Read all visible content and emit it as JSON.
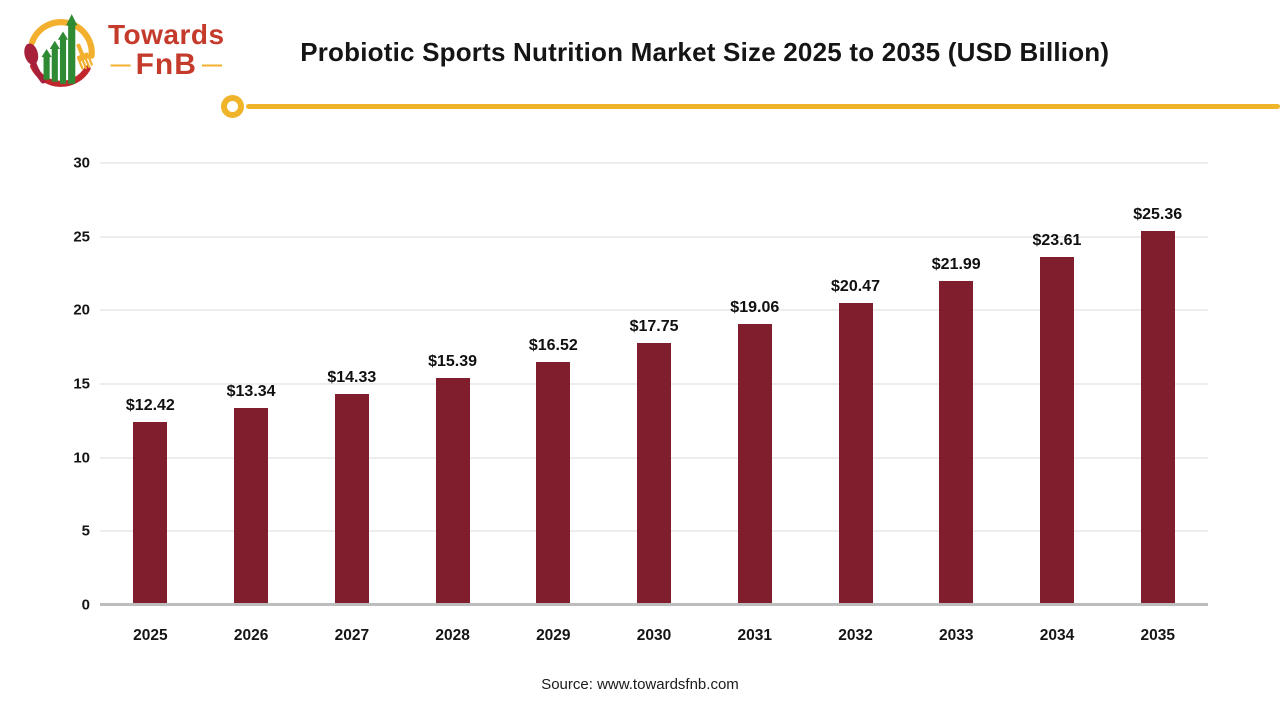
{
  "brand": {
    "name_line1": "Towards",
    "name_line2": "FnB",
    "dash": "—"
  },
  "header": {
    "title": "Probiotic Sports Nutrition Market Size 2025 to 2035 (USD Billion)"
  },
  "chart_data": {
    "type": "bar",
    "title": "Probiotic Sports Nutrition Market Size 2025 to 2035 (USD Billion)",
    "categories": [
      "2025",
      "2026",
      "2027",
      "2028",
      "2029",
      "2030",
      "2031",
      "2032",
      "2033",
      "2034",
      "2035"
    ],
    "values": [
      12.42,
      13.34,
      14.33,
      15.39,
      16.52,
      17.75,
      19.06,
      20.47,
      21.99,
      23.61,
      25.36
    ],
    "data_labels": [
      "$12.42",
      "$13.34",
      "$14.33",
      "$15.39",
      "$16.52",
      "$17.75",
      "$19.06",
      "$20.47",
      "$21.99",
      "$23.61",
      "$25.36"
    ],
    "xlabel": "",
    "ylabel": "",
    "ylim": [
      0,
      30
    ],
    "yticks": [
      0,
      5,
      10,
      15,
      20,
      25,
      30
    ],
    "grid": true,
    "legend": false,
    "bar_color": "#801E2D"
  },
  "footer": {
    "source": "Source: www.towardsfnb.com"
  },
  "colors": {
    "bar": "#801E2D",
    "accent_gold": "#F0B42A",
    "brand_red": "#C43A2B",
    "brand_green": "#2E8B34",
    "spoon_red": "#A62139",
    "arc_red": "#C1272D"
  }
}
